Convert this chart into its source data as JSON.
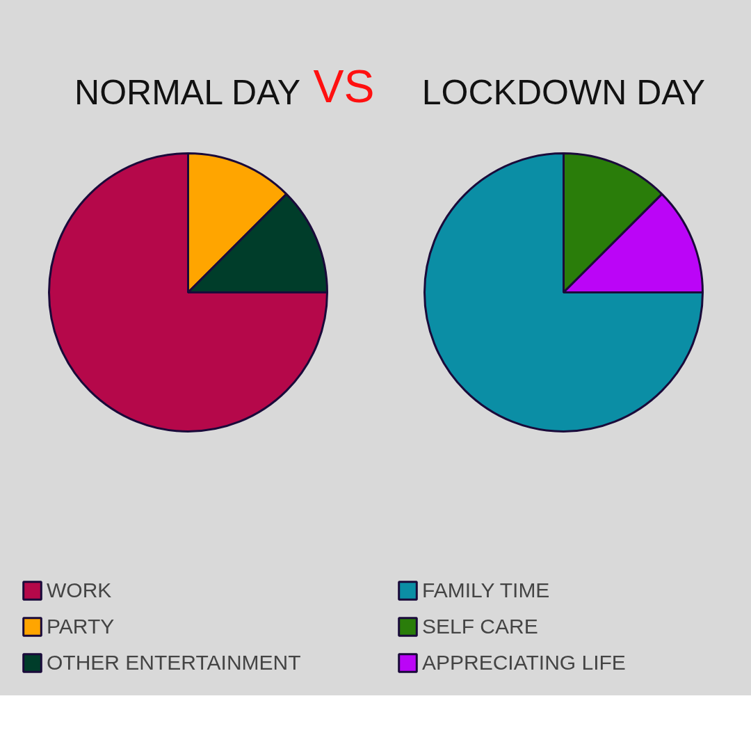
{
  "chart_data": [
    {
      "type": "pie",
      "title": "NORMAL DAY",
      "annotations": [
        "VS"
      ],
      "categories": [
        "WORK",
        "PARTY",
        "OTHER ENTERTAINMENT"
      ],
      "values": [
        75,
        12.5,
        12.5
      ],
      "colors": [
        "#b5084a",
        "#ffa500",
        "#003d2a"
      ],
      "legend": "bottom"
    },
    {
      "type": "pie",
      "title": "LOCKDOWN DAY",
      "categories": [
        "FAMILY TIME",
        "SELF CARE",
        "APPRECIATING LIFE"
      ],
      "values": [
        75,
        12.5,
        12.5
      ],
      "colors": [
        "#0b8ea5",
        "#2a7d0a",
        "#bb05f7"
      ],
      "legend": "bottom"
    }
  ]
}
